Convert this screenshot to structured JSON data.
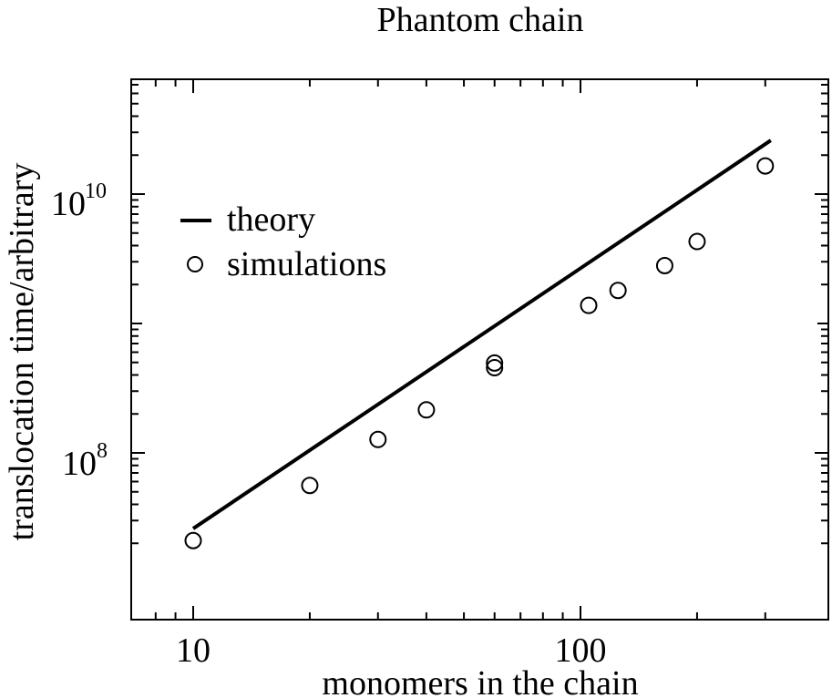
{
  "chart_data": {
    "type": "scatter",
    "title": "Phantom chain",
    "xlabel": "monomers in the chain",
    "ylabel": "translocation time/arbitrary",
    "x_scale": "log",
    "y_scale": "log",
    "xlim": [
      7,
      300
    ],
    "ylim": [
      15000000.0,
      100000000000.0
    ],
    "grid": false,
    "legend_position": "upper-left",
    "x_ticks": [
      {
        "value": 10,
        "label": "10"
      },
      {
        "value": 100,
        "label": "100"
      }
    ],
    "y_ticks": [
      {
        "value": 100000000.0,
        "base": "10",
        "exp": "8"
      },
      {
        "value": 10000000000.0,
        "base": "10",
        "exp": "10"
      }
    ],
    "series": [
      {
        "name": "theory",
        "kind": "line",
        "x": [
          10,
          310
        ],
        "y": [
          26000000.0,
          26000000000.0
        ]
      },
      {
        "name": "simulations",
        "kind": "marker",
        "x": [
          10,
          20,
          30,
          40,
          60,
          60,
          105,
          125,
          165,
          200,
          300
        ],
        "y": [
          21000000.0,
          56000000.0,
          127000000.0,
          215000000.0,
          455000000.0,
          495000000.0,
          1380000000.0,
          1800000000.0,
          2800000000.0,
          4300000000.0,
          16500000000.0
        ]
      }
    ]
  }
}
